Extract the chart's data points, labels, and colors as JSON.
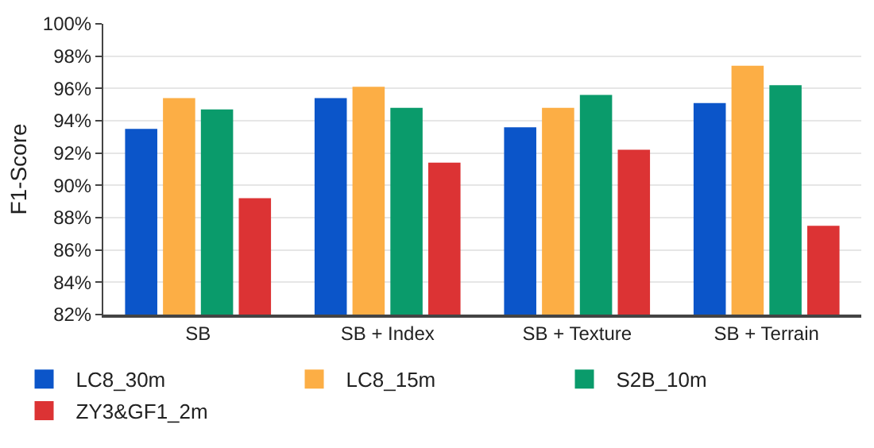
{
  "chart_data": {
    "type": "bar",
    "ylabel": "F1-Score",
    "categories": [
      "SB",
      "SB + Index",
      "SB + Texture",
      "SB + Terrain"
    ],
    "series": [
      {
        "name": "LC8_30m",
        "color": "#0b55c9",
        "values": [
          93.5,
          95.4,
          93.6,
          95.1
        ]
      },
      {
        "name": "LC8_15m",
        "color": "#fcae45",
        "values": [
          95.4,
          96.1,
          94.8,
          97.4
        ]
      },
      {
        "name": "S2B_10m",
        "color": "#0a9b6b",
        "values": [
          94.7,
          94.8,
          95.6,
          96.2
        ]
      },
      {
        "name": "ZY3&GF1_2m",
        "color": "#dc3334",
        "values": [
          89.2,
          91.4,
          92.2,
          87.5
        ]
      }
    ],
    "ylim": [
      82,
      100
    ],
    "yticks": [
      {
        "value": 82,
        "label": "82%"
      },
      {
        "value": 84,
        "label": "84%"
      },
      {
        "value": 86,
        "label": "86%"
      },
      {
        "value": 88,
        "label": "88%"
      },
      {
        "value": 90,
        "label": "90%"
      },
      {
        "value": 92,
        "label": "92%"
      },
      {
        "value": 94,
        "label": "94%"
      },
      {
        "value": 96,
        "label": "96%"
      },
      {
        "value": 98,
        "label": "98%"
      },
      {
        "value": 100,
        "label": "100%"
      }
    ],
    "grid": "y",
    "legend": "bottom left"
  }
}
